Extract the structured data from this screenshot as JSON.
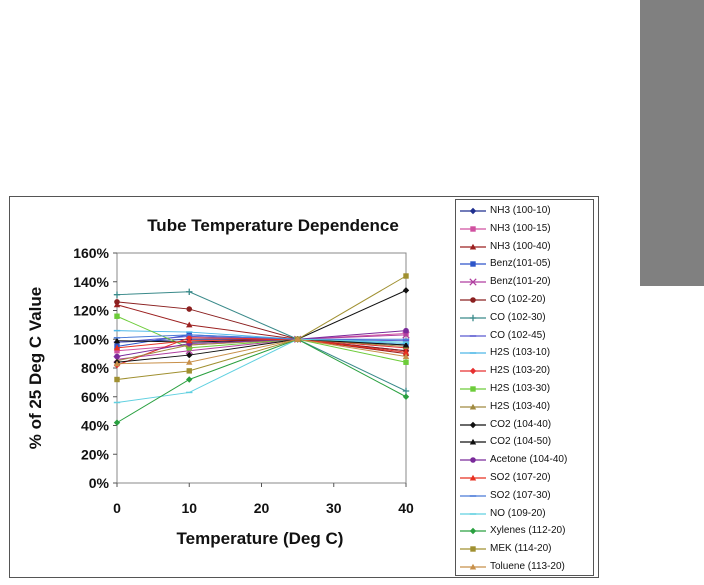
{
  "chart_data": {
    "type": "line",
    "title": "Tube Temperature Dependence",
    "xlabel": "Temperature (Deg C)",
    "ylabel": "% of 25 Deg C Value",
    "x_ticks": [
      "0",
      "10",
      "20",
      "30",
      "40"
    ],
    "y_ticks": [
      "0%",
      "20%",
      "40%",
      "60%",
      "80%",
      "100%",
      "120%",
      "140%",
      "160%"
    ],
    "xlim": [
      0,
      40
    ],
    "ylim": [
      0,
      160
    ],
    "x": [
      0,
      10,
      25,
      40
    ],
    "series": [
      {
        "name": "NH3 (100-10)",
        "color": "#1f2f8f",
        "marker": "diamond",
        "values": [
          98,
          100,
          100,
          92
        ]
      },
      {
        "name": "NH3 (100-15)",
        "color": "#d050a0",
        "marker": "square",
        "values": [
          92,
          96,
          100,
          104
        ]
      },
      {
        "name": "NH3 (100-40)",
        "color": "#9c2020",
        "marker": "triangle",
        "values": [
          124,
          110,
          100,
          90
        ]
      },
      {
        "name": "Benz(101-05)",
        "color": "#2d55c9",
        "marker": "square",
        "values": [
          95,
          103,
          100,
          96
        ]
      },
      {
        "name": "Benz(101-20)",
        "color": "#b03fa0",
        "marker": "x",
        "values": [
          86,
          92,
          100,
          103
        ]
      },
      {
        "name": "CO (102-20)",
        "color": "#8b2020",
        "marker": "circle",
        "values": [
          126,
          121,
          100,
          92
        ]
      },
      {
        "name": "CO (102-30)",
        "color": "#3a8a8a",
        "marker": "plus",
        "values": [
          131,
          133,
          100,
          64
        ]
      },
      {
        "name": "CO (102-45)",
        "color": "#5a5ad0",
        "marker": "dash",
        "values": [
          98,
          102,
          100,
          99
        ]
      },
      {
        "name": "H2S (103-10)",
        "color": "#4fb8e8",
        "marker": "dash",
        "values": [
          106,
          105,
          100,
          97
        ]
      },
      {
        "name": "H2S (103-20)",
        "color": "#e63030",
        "marker": "diamond",
        "values": [
          82,
          101,
          100,
          94
        ]
      },
      {
        "name": "H2S (103-30)",
        "color": "#6dcc3a",
        "marker": "square",
        "values": [
          116,
          94,
          100,
          84
        ]
      },
      {
        "name": "H2S (103-40)",
        "color": "#a08a40",
        "marker": "triangle",
        "values": [
          85,
          96,
          100,
          95
        ]
      },
      {
        "name": "CO2 (104-40)",
        "color": "#111111",
        "marker": "diamond",
        "values": [
          84,
          89,
          100,
          134
        ]
      },
      {
        "name": "CO2 (104-50)",
        "color": "#111111",
        "marker": "triangle",
        "values": [
          99,
          98,
          100,
          96
        ]
      },
      {
        "name": "Acetone (104-40)",
        "color": "#7a2a9a",
        "marker": "circle",
        "values": [
          88,
          97,
          100,
          106
        ]
      },
      {
        "name": "SO2 (107-20)",
        "color": "#e83020",
        "marker": "triangle",
        "values": [
          94,
          99,
          100,
          91
        ]
      },
      {
        "name": "SO2 (107-30)",
        "color": "#4a7ad8",
        "marker": "dash",
        "values": [
          101,
          103,
          100,
          100
        ]
      },
      {
        "name": "NO (109-20)",
        "color": "#60d0e0",
        "marker": "dash",
        "values": [
          56,
          63,
          100,
          98
        ]
      },
      {
        "name": "Xylenes (112-20)",
        "color": "#2aa040",
        "marker": "diamond",
        "values": [
          42,
          72,
          100,
          60
        ]
      },
      {
        "name": "MEK (114-20)",
        "color": "#a09030",
        "marker": "square",
        "values": [
          72,
          78,
          100,
          144
        ]
      },
      {
        "name": "Toluene (113-20)",
        "color": "#c8904a",
        "marker": "triangle",
        "values": [
          83,
          84,
          100,
          88
        ]
      }
    ]
  }
}
